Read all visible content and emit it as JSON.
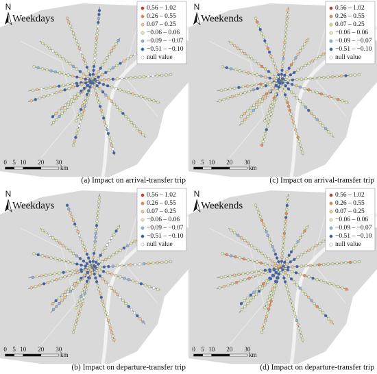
{
  "panels": [
    {
      "north": "N",
      "title": "Weekdays",
      "caption": "(a) Impact on arrival-transfer trip",
      "legend": [
        {
          "label": "0.56 – 1.02",
          "color": "#d7301f"
        },
        {
          "label": "0.26 – 0.55",
          "color": "#ef8a47"
        },
        {
          "label": "0.07 – 0.25",
          "color": "#f3c98b"
        },
        {
          "label": "−0.06 – 0.06",
          "color": "#dfe9b0"
        },
        {
          "label": "−0.09 – −0.07",
          "color": "#8fb1da"
        },
        {
          "label": "−0.51 – −0.10",
          "color": "#3b62ad"
        },
        {
          "label": "null value",
          "color": "#ffffff"
        }
      ],
      "scale": {
        "ticks": [
          "0",
          "5",
          "10",
          "20",
          "30"
        ],
        "unit": "km"
      }
    },
    {
      "north": "N",
      "title": "Weekends",
      "caption": "(c) Impact on arrival-transfer trip",
      "legend": [
        {
          "label": "0.56 – 1.02",
          "color": "#d7301f"
        },
        {
          "label": "0.26 – 0.55",
          "color": "#ef8a47"
        },
        {
          "label": "0.07 – 0.25",
          "color": "#f3c98b"
        },
        {
          "label": "−0.06 – 0.06",
          "color": "#dfe9b0"
        },
        {
          "label": "−0.09 – −0.07",
          "color": "#8fb1da"
        },
        {
          "label": "−0.51 – −0.10",
          "color": "#3b62ad"
        },
        {
          "label": "null value",
          "color": "#ffffff"
        }
      ],
      "scale": {
        "ticks": [
          "0",
          "5",
          "10",
          "20",
          "30"
        ],
        "unit": "km"
      }
    },
    {
      "north": "N",
      "title": "Weekdays",
      "caption": "(b) Impact on departure-transfer trip",
      "legend": [
        {
          "label": "0.56 – 1.02",
          "color": "#d7301f"
        },
        {
          "label": "0.26 – 0.55",
          "color": "#ef8a47"
        },
        {
          "label": "0.07 – 0.25",
          "color": "#f3c98b"
        },
        {
          "label": "−0.06 – 0.06",
          "color": "#dfe9b0"
        },
        {
          "label": "−0.09 – −0.07",
          "color": "#8fb1da"
        },
        {
          "label": "−0.51 – −0.10",
          "color": "#3b62ad"
        },
        {
          "label": "null value",
          "color": "#ffffff"
        }
      ],
      "scale": {
        "ticks": [
          "0",
          "5",
          "10",
          "20",
          "30"
        ],
        "unit": "km"
      }
    },
    {
      "north": "N",
      "title": "Weekends",
      "caption": "(d) Impact on departure-transfer trip",
      "legend": [
        {
          "label": "0.56 – 1.02",
          "color": "#d7301f"
        },
        {
          "label": "0.26 – 0.55",
          "color": "#ef8a47"
        },
        {
          "label": "0.07 – 0.25",
          "color": "#f3c98b"
        },
        {
          "label": "−0.06 – 0.06",
          "color": "#dfe9b0"
        },
        {
          "label": "−0.09 – −0.07",
          "color": "#8fb1da"
        },
        {
          "label": "−0.51 – −0.10",
          "color": "#3b62ad"
        },
        {
          "label": "null value",
          "color": "#ffffff"
        }
      ],
      "scale": {
        "ticks": [
          "0",
          "5",
          "10",
          "20",
          "30"
        ],
        "unit": "km"
      }
    }
  ]
}
